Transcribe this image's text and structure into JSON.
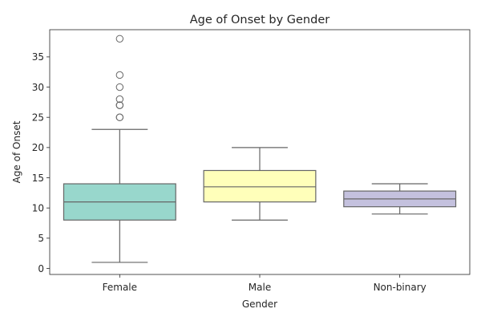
{
  "chart_data": {
    "type": "box",
    "title": "Age of Onset by Gender",
    "xlabel": "Gender",
    "ylabel": "Age of Onset",
    "categories": [
      "Female",
      "Male",
      "Non-binary"
    ],
    "ylim": [
      -1,
      39.5
    ],
    "yticks": [
      0,
      5,
      10,
      15,
      20,
      25,
      30,
      35
    ],
    "grid": false,
    "colors": [
      "#8dd3c7",
      "#ffffb3",
      "#bebada"
    ],
    "edge_color": "#666666",
    "boxes": [
      {
        "category": "Female",
        "whisker_low": 1,
        "q1": 8,
        "median": 11,
        "q3": 14,
        "whisker_high": 23,
        "outliers": [
          25,
          25,
          27,
          27,
          28,
          30,
          32,
          38
        ]
      },
      {
        "category": "Male",
        "whisker_low": 8,
        "q1": 11,
        "median": 13.5,
        "q3": 16.2,
        "whisker_high": 20,
        "outliers": []
      },
      {
        "category": "Non-binary",
        "whisker_low": 9,
        "q1": 10.2,
        "median": 11.5,
        "q3": 12.8,
        "whisker_high": 14,
        "outliers": []
      }
    ]
  }
}
